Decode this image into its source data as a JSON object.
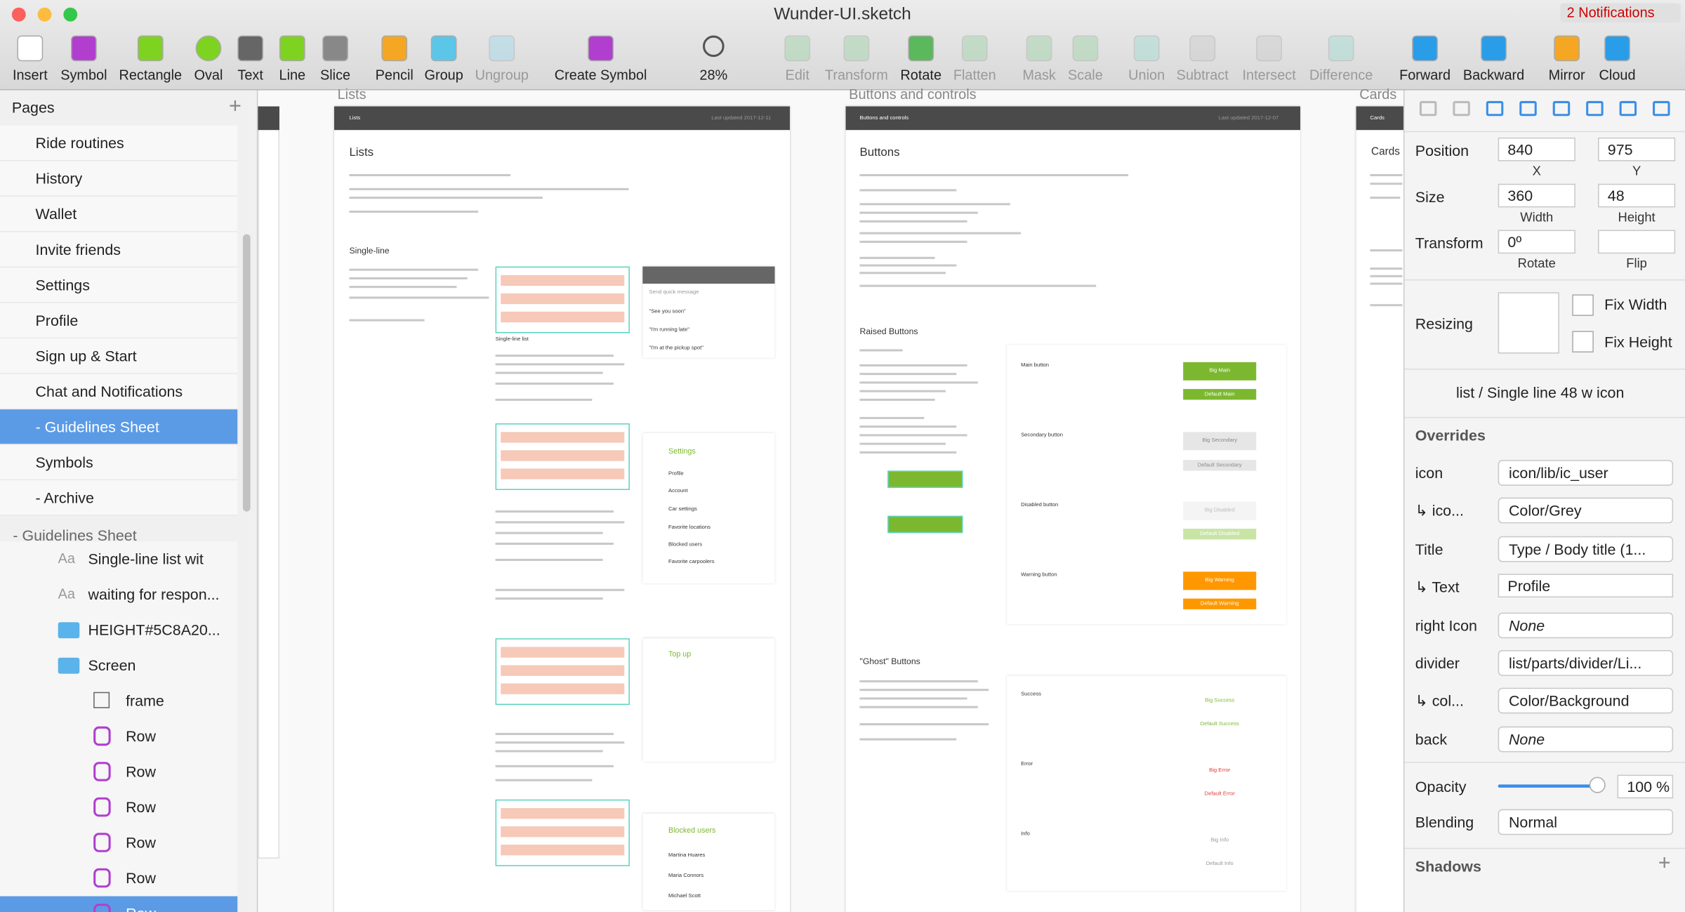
{
  "window": {
    "title": "Wunder-UI.sketch",
    "notifications": "2 Notifications"
  },
  "toolbar": {
    "items": [
      "Insert",
      "Symbol",
      "Rectangle",
      "Oval",
      "Text",
      "Line",
      "Slice",
      "Pencil",
      "Group",
      "Ungroup",
      "Create Symbol",
      "28%",
      "Edit",
      "Transform",
      "Rotate",
      "Flatten",
      "Mask",
      "Scale",
      "Union",
      "Subtract",
      "Intersect",
      "Difference",
      "Forward",
      "Backward",
      "Mirror",
      "Cloud"
    ]
  },
  "pages": {
    "title": "Pages",
    "items": [
      "Ride routines",
      "History",
      "Wallet",
      "Invite friends",
      "Settings",
      "Profile",
      "Sign up & Start",
      "Chat and Notifications",
      "- Guidelines Sheet",
      "Symbols",
      "- Archive"
    ],
    "selected": 8
  },
  "layers": {
    "title": "- Guidelines Sheet",
    "items": [
      "Single-line list wit",
      "waiting for respon...",
      "HEIGHT#5C8A20...",
      "Screen",
      "frame",
      "Row",
      "Row",
      "Row",
      "Row",
      "Row",
      "Row"
    ]
  },
  "canvas": {
    "texts": [
      "Lists",
      "Buttons and controls",
      "Cards",
      "Lists",
      "Last updated 2017-12-11",
      "Buttons and controls",
      "Last updated 2017-12-07",
      "Cards",
      "Lists",
      "Single-line",
      "Buttons",
      "Raised Buttons",
      "\"Ghost\" Buttons",
      "Cards",
      "Send quick message",
      "\"See you soon\"",
      "\"I'm running late\"",
      "\"I'm at the pickup spot\"",
      "Settings",
      "Profile",
      "Account",
      "Car settings",
      "Favorite locations",
      "Blocked users",
      "Favorite carpoolers",
      "Top up",
      "Blocked users",
      "Martina Huares",
      "Maria Connors",
      "Michael Scott",
      "Single-line list",
      "Main button",
      "Secondary button",
      "Disabled button",
      "Warning button",
      "Success",
      "Error",
      "Info"
    ],
    "buttons": [
      "Big Main",
      "Default Main",
      "Big Secondary",
      "Default Secondary",
      "Big Disabled",
      "Default Disabled",
      "Big Warning",
      "Default Warning",
      "Big Success",
      "Default Success",
      "Big Error",
      "Default Error",
      "Big Info",
      "Default Info"
    ]
  },
  "inspector": {
    "position_label": "Position",
    "x": "840",
    "y": "975",
    "x_label": "X",
    "y_label": "Y",
    "size_label": "Size",
    "width": "360",
    "height": "48",
    "width_label": "Width",
    "height_label": "Height",
    "transform_label": "Transform",
    "rotate": "0º",
    "rotate_label": "Rotate",
    "flip_label": "Flip",
    "resizing_label": "Resizing",
    "fix_width": "Fix Width",
    "fix_height": "Fix Height",
    "symbol": "list / Single line 48 w icon",
    "overrides_title": "Overrides",
    "overrides": [
      [
        "icon",
        "icon/lib/ic_user"
      ],
      [
        "↳ ico...",
        "Color/Grey"
      ],
      [
        "Title",
        "Type / Body title (1..."
      ],
      [
        "↳ Text",
        "Profile"
      ],
      [
        "right Icon",
        "None"
      ],
      [
        "divider",
        "list/parts/divider/Li..."
      ],
      [
        "↳ col...",
        "Color/Background"
      ],
      [
        "back",
        "None"
      ]
    ],
    "opacity_label": "Opacity",
    "opacity": "100 %",
    "blending_label": "Blending",
    "blending": "Normal",
    "shadows_title": "Shadows"
  }
}
